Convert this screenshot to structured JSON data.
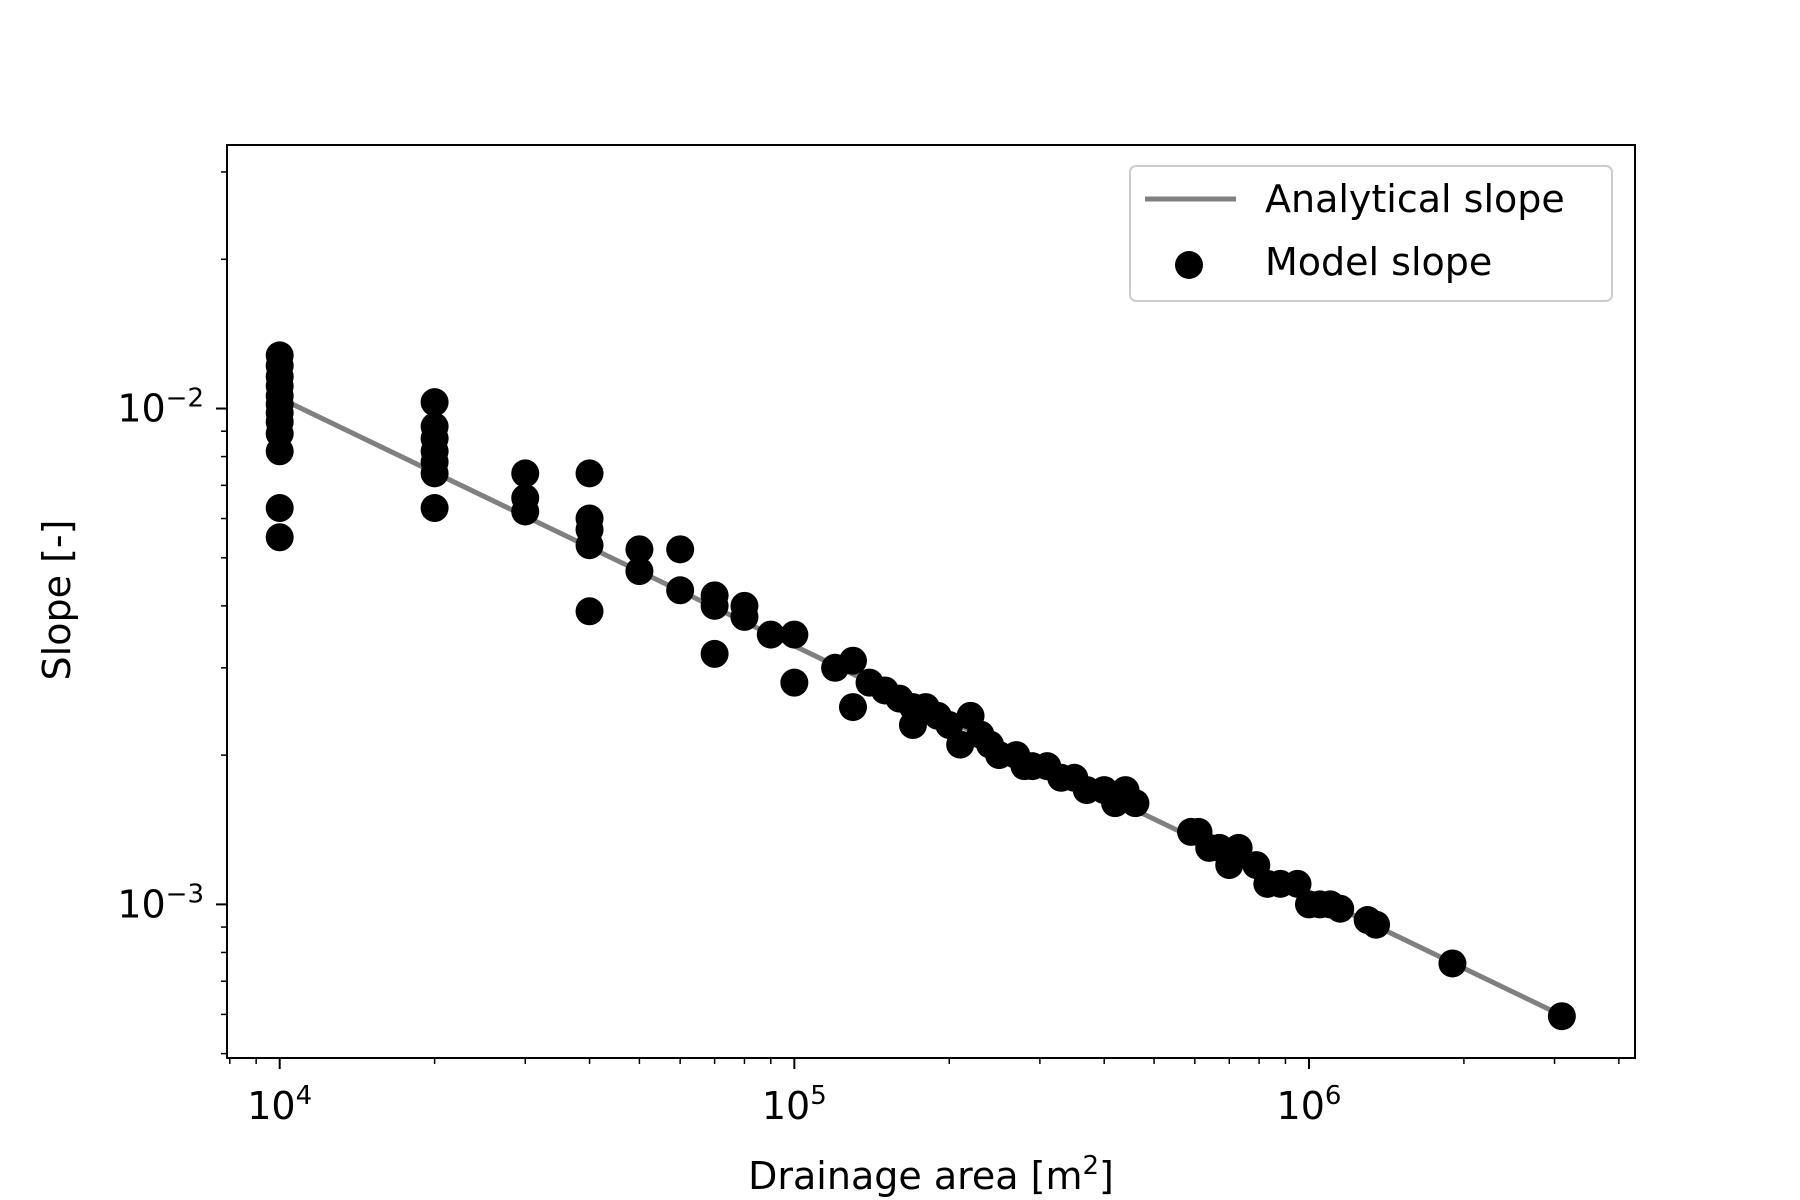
{
  "chart_data": {
    "type": "scatter",
    "title": "",
    "xlabel": {
      "main": "Drainage area [m",
      "sup": "2",
      "close": "]"
    },
    "ylabel": "Slope [-]",
    "xscale": "log",
    "yscale": "log",
    "xlim": [
      7900,
      4300000
    ],
    "ylim": [
      0.00049,
      0.034
    ],
    "grid": false,
    "legend_position": "top-right",
    "x_ticks": [
      {
        "value": 10000,
        "base": "10",
        "exp": "4"
      },
      {
        "value": 100000,
        "base": "10",
        "exp": "5"
      },
      {
        "value": 1000000,
        "base": "10",
        "exp": "6"
      }
    ],
    "y_ticks": [
      {
        "value": 0.001,
        "base": "10",
        "exp": "−3"
      },
      {
        "value": 0.01,
        "base": "10",
        "exp": "−2"
      }
    ],
    "line_series": {
      "name": "Analytical slope",
      "color": "#808080",
      "x": [
        10000,
        3100000
      ],
      "y": [
        0.0105,
        0.000597
      ]
    },
    "scatter_series": {
      "name": "Model slope",
      "color": "#000000",
      "points": [
        [
          10000,
          0.0128
        ],
        [
          10000,
          0.0122
        ],
        [
          10000,
          0.0116
        ],
        [
          10000,
          0.0111
        ],
        [
          10000,
          0.0106
        ],
        [
          10000,
          0.0102
        ],
        [
          10000,
          0.0098
        ],
        [
          10000,
          0.0094
        ],
        [
          10000,
          0.0089
        ],
        [
          10000,
          0.0082
        ],
        [
          10000,
          0.0063
        ],
        [
          10000,
          0.0055
        ],
        [
          20000,
          0.0103
        ],
        [
          20000,
          0.0092
        ],
        [
          20000,
          0.0087
        ],
        [
          20000,
          0.0082
        ],
        [
          20000,
          0.0078
        ],
        [
          20000,
          0.0074
        ],
        [
          20000,
          0.0063
        ],
        [
          30000,
          0.0074
        ],
        [
          30000,
          0.0066
        ],
        [
          30000,
          0.0062
        ],
        [
          40000,
          0.0074
        ],
        [
          40000,
          0.006
        ],
        [
          40000,
          0.0057
        ],
        [
          40000,
          0.0053
        ],
        [
          40000,
          0.0039
        ],
        [
          50000,
          0.0052
        ],
        [
          50000,
          0.0047
        ],
        [
          60000,
          0.0052
        ],
        [
          60000,
          0.0043
        ],
        [
          70000,
          0.0042
        ],
        [
          70000,
          0.004
        ],
        [
          70000,
          0.0032
        ],
        [
          80000,
          0.004
        ],
        [
          80000,
          0.0038
        ],
        [
          90000,
          0.0035
        ],
        [
          100000,
          0.0035
        ],
        [
          100000,
          0.0028
        ],
        [
          120000,
          0.003
        ],
        [
          130000,
          0.0031
        ],
        [
          130000,
          0.0025
        ],
        [
          140000,
          0.0028
        ],
        [
          150000,
          0.0027
        ],
        [
          160000,
          0.0026
        ],
        [
          170000,
          0.0025
        ],
        [
          170000,
          0.0023
        ],
        [
          180000,
          0.0025
        ],
        [
          190000,
          0.0024
        ],
        [
          200000,
          0.0023
        ],
        [
          210000,
          0.0021
        ],
        [
          220000,
          0.0024
        ],
        [
          230000,
          0.0022
        ],
        [
          240000,
          0.0021
        ],
        [
          250000,
          0.002
        ],
        [
          270000,
          0.002
        ],
        [
          280000,
          0.0019
        ],
        [
          290000,
          0.0019
        ],
        [
          310000,
          0.0019
        ],
        [
          330000,
          0.0018
        ],
        [
          350000,
          0.0018
        ],
        [
          370000,
          0.0017
        ],
        [
          400000,
          0.0017
        ],
        [
          420000,
          0.0016
        ],
        [
          440000,
          0.0017
        ],
        [
          460000,
          0.0016
        ],
        [
          590000,
          0.0014
        ],
        [
          610000,
          0.0014
        ],
        [
          640000,
          0.0013
        ],
        [
          670000,
          0.0013
        ],
        [
          700000,
          0.0012
        ],
        [
          730000,
          0.0013
        ],
        [
          790000,
          0.0012
        ],
        [
          830000,
          0.0011
        ],
        [
          880000,
          0.0011
        ],
        [
          950000,
          0.0011
        ],
        [
          1000000,
          0.001
        ],
        [
          1050000,
          0.001
        ],
        [
          1100000,
          0.001
        ],
        [
          1150000,
          0.00098
        ],
        [
          1300000,
          0.00093
        ],
        [
          1350000,
          0.00091
        ],
        [
          1900000,
          0.00076
        ],
        [
          3100000,
          0.000595
        ]
      ]
    }
  }
}
